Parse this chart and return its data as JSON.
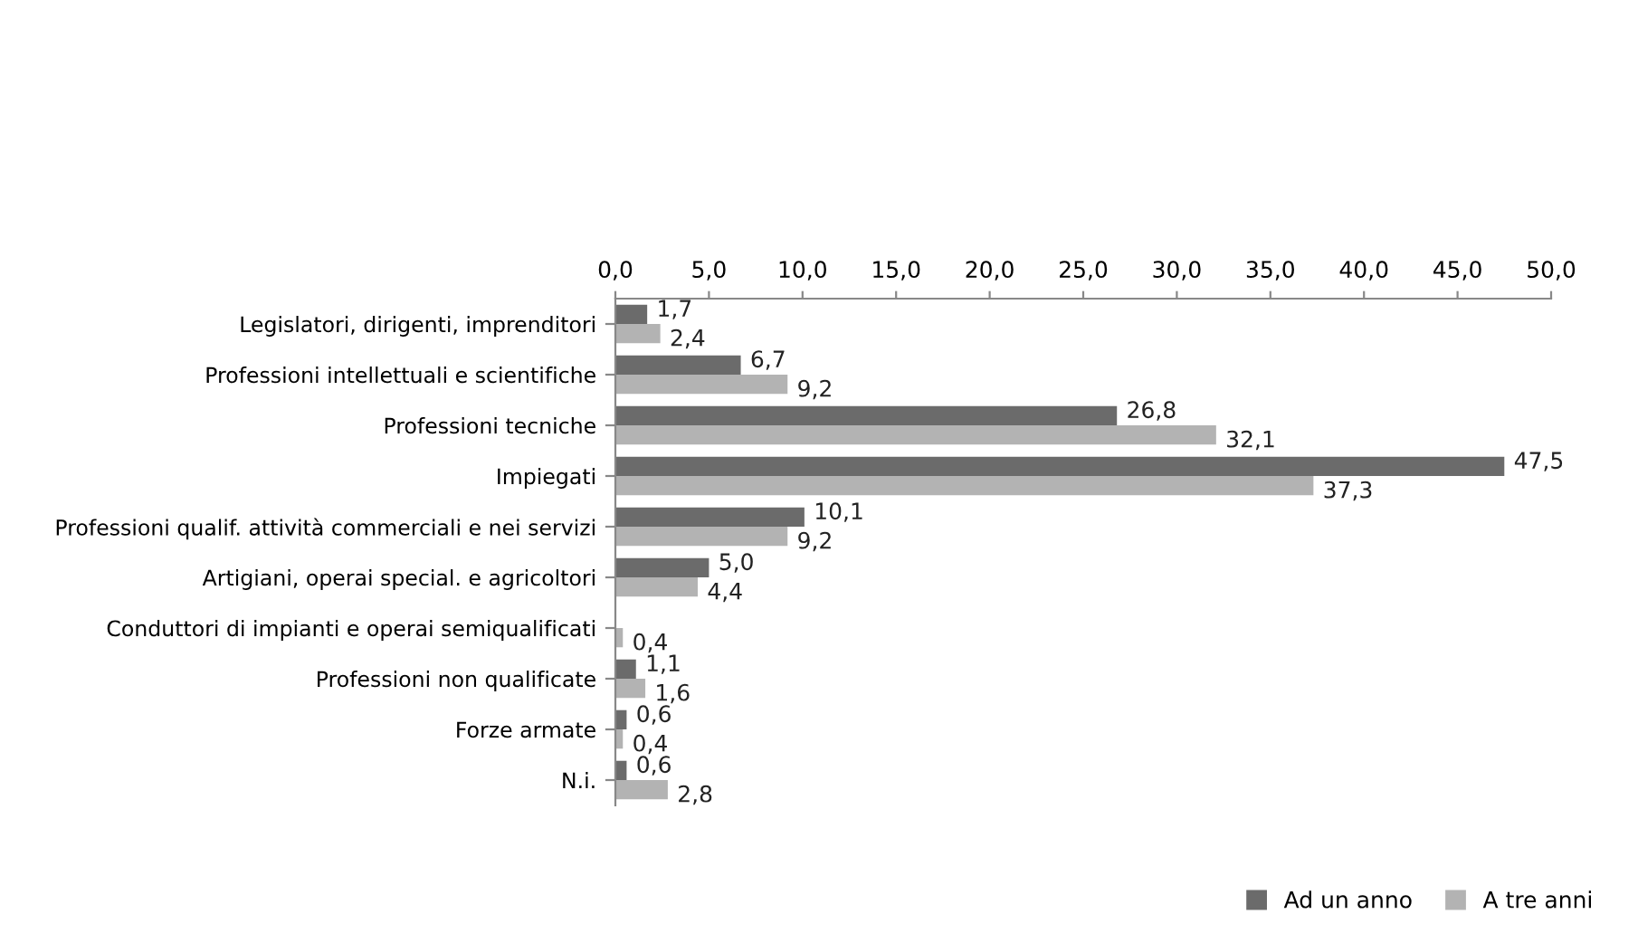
{
  "chart_data": {
    "type": "bar",
    "orientation": "horizontal",
    "categories": [
      "Legislatori, dirigenti, imprenditori",
      "Professioni intellettuali e scientifiche",
      "Professioni tecniche",
      "Impiegati",
      "Professioni qualif. attività commerciali e nei servizi",
      "Artigiani, operai special. e agricoltori",
      "Conduttori di impianti e operai semiqualificati",
      "Professioni non qualificate",
      "Forze armate",
      "N.i."
    ],
    "series": [
      {
        "name": "Ad un anno",
        "color": "#6b6b6b",
        "values": [
          1.7,
          6.7,
          26.8,
          47.5,
          10.1,
          5.0,
          null,
          1.1,
          0.6,
          0.6
        ],
        "value_labels": [
          "1,7",
          "6,7",
          "26,8",
          "47,5",
          "10,1",
          "5,0",
          null,
          "1,1",
          "0,6",
          "0,6"
        ]
      },
      {
        "name": "A tre anni",
        "color": "#b3b3b3",
        "values": [
          2.4,
          9.2,
          32.1,
          37.3,
          9.2,
          4.4,
          0.4,
          1.6,
          0.4,
          2.8
        ],
        "value_labels": [
          "2,4",
          "9,2",
          "32,1",
          "37,3",
          "9,2",
          "4,4",
          "0,4",
          "1,6",
          "0,4",
          "2,8"
        ]
      }
    ],
    "xlim": [
      0,
      50
    ],
    "xticks": [
      {
        "value": 0,
        "label": "0,0"
      },
      {
        "value": 5,
        "label": "5,0"
      },
      {
        "value": 10,
        "label": "10,0"
      },
      {
        "value": 15,
        "label": "15,0"
      },
      {
        "value": 20,
        "label": "20,0"
      },
      {
        "value": 25,
        "label": "25,0"
      },
      {
        "value": 30,
        "label": "30,0"
      },
      {
        "value": 35,
        "label": "35,0"
      },
      {
        "value": 40,
        "label": "40,0"
      },
      {
        "value": 45,
        "label": "45,0"
      },
      {
        "value": 50,
        "label": "50,0"
      }
    ],
    "grid": false,
    "legend": "bottom right"
  }
}
